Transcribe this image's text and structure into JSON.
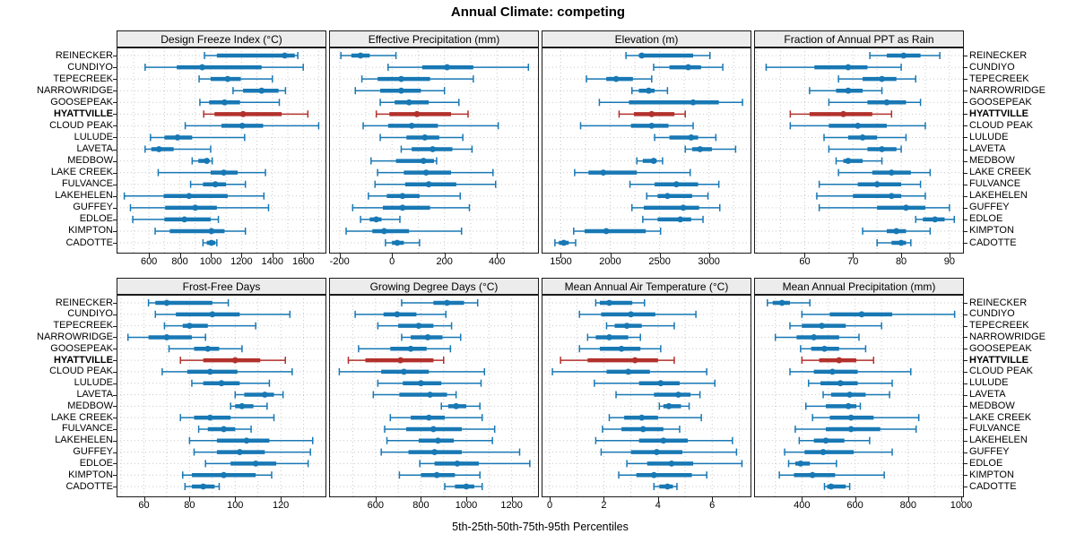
{
  "title": "Annual Climate: competing",
  "xlabel": "5th-25th-50th-75th-95th Percentiles",
  "percentile_labels": [
    "5th",
    "25th",
    "50th",
    "75th",
    "95th"
  ],
  "highlight_station": "HYATTVILLE",
  "colors": {
    "series_blue": "#1878b4",
    "highlight_red": "#b2312c",
    "gridline": "#c9c9c9",
    "strip_bg": "#ececec",
    "border": "#1a1a1a"
  },
  "stations": [
    "REINECKER",
    "CUNDIYO",
    "TEPECREEK",
    "NARROWRIDGE",
    "GOOSEPEAK",
    "HYATTVILLE",
    "CLOUD PEAK",
    "LULUDE",
    "LAVETA",
    "MEDBOW",
    "LAKE CREEK",
    "FULVANCE",
    "LAKEHELEN",
    "GUFFEY",
    "EDLOE",
    "KIMPTON",
    "CADOTTE"
  ],
  "chart_data": [
    {
      "type": "dotplot of 5-25-50-75-95 percentile intervals",
      "title": "Design Freeze Index (°C)",
      "xlim": [
        390,
        1750
      ],
      "ticks": [
        600,
        800,
        1000,
        1200,
        1400,
        1600
      ],
      "grid_step": 100,
      "values": [
        [
          960,
          1040,
          1480,
          1545,
          1565
        ],
        [
          575,
          780,
          945,
          1330,
          1600
        ],
        [
          925,
          1000,
          1110,
          1195,
          1400
        ],
        [
          1145,
          1210,
          1330,
          1440,
          1485
        ],
        [
          930,
          990,
          1090,
          1190,
          1445
        ],
        [
          955,
          1025,
          1210,
          1460,
          1630
        ],
        [
          835,
          1070,
          1205,
          1340,
          1700
        ],
        [
          610,
          700,
          785,
          880,
          1220
        ],
        [
          575,
          615,
          665,
          760,
          1000
        ],
        [
          880,
          920,
          975,
          990,
          1010
        ],
        [
          660,
          1000,
          1085,
          1175,
          1355
        ],
        [
          870,
          950,
          1030,
          1100,
          1225
        ],
        [
          440,
          695,
          860,
          1110,
          1345
        ],
        [
          480,
          705,
          900,
          1040,
          1375
        ],
        [
          495,
          700,
          830,
          1000,
          1050
        ],
        [
          640,
          735,
          1005,
          1090,
          1225
        ],
        [
          950,
          975,
          1005,
          1030,
          1040
        ]
      ]
    },
    {
      "type": "dotplot of 5-25-50-75-95 percentile intervals",
      "title": "Effective Precipitation (mm)",
      "xlim": [
        -240,
        560
      ],
      "ticks": [
        -200,
        0,
        200,
        400
      ],
      "grid_step": 100,
      "values": [
        [
          -195,
          -155,
          -120,
          -85,
          15
        ],
        [
          -15,
          115,
          210,
          310,
          520
        ],
        [
          -115,
          -55,
          35,
          145,
          310
        ],
        [
          -140,
          -45,
          35,
          110,
          200
        ],
        [
          -45,
          10,
          65,
          140,
          255
        ],
        [
          -60,
          -10,
          95,
          225,
          290
        ],
        [
          -110,
          -15,
          75,
          175,
          405
        ],
        [
          -45,
          55,
          125,
          180,
          270
        ],
        [
          35,
          75,
          155,
          230,
          305
        ],
        [
          -80,
          15,
          120,
          160,
          170
        ],
        [
          -55,
          45,
          130,
          225,
          385
        ],
        [
          -65,
          50,
          140,
          245,
          395
        ],
        [
          -90,
          -20,
          40,
          105,
          260
        ],
        [
          -150,
          -35,
          40,
          145,
          295
        ],
        [
          -120,
          -85,
          -60,
          -40,
          30
        ],
        [
          -175,
          -75,
          -30,
          65,
          265
        ],
        [
          -25,
          0,
          20,
          45,
          105
        ]
      ]
    },
    {
      "type": "dotplot of 5-25-50-75-95 percentile intervals",
      "title": "Elevation (m)",
      "xlim": [
        1305,
        3430
      ],
      "ticks": [
        1500,
        2000,
        2500,
        3000
      ],
      "grid_step": 250,
      "values": [
        [
          2160,
          2290,
          2320,
          2840,
          3010
        ],
        [
          2440,
          2600,
          2790,
          2920,
          3140
        ],
        [
          1760,
          1960,
          2060,
          2230,
          2420
        ],
        [
          2220,
          2290,
          2390,
          2450,
          2580
        ],
        [
          1890,
          2190,
          2840,
          3100,
          3340
        ],
        [
          2090,
          2240,
          2420,
          2650,
          2760
        ],
        [
          1700,
          2210,
          2420,
          2590,
          2840
        ],
        [
          2450,
          2600,
          2820,
          2890,
          3070
        ],
        [
          2760,
          2830,
          2910,
          3030,
          3270
        ],
        [
          2270,
          2330,
          2440,
          2470,
          2530
        ],
        [
          1640,
          1780,
          1930,
          2270,
          2810
        ],
        [
          2200,
          2450,
          2670,
          2890,
          3100
        ],
        [
          2370,
          2480,
          2580,
          2830,
          2990
        ],
        [
          2220,
          2340,
          2740,
          2900,
          3110
        ],
        [
          2330,
          2480,
          2710,
          2820,
          2940
        ],
        [
          1630,
          1740,
          1960,
          2360,
          2510
        ],
        [
          1440,
          1480,
          1530,
          1580,
          1650
        ]
      ]
    },
    {
      "type": "dotplot of 5-25-50-75-95 percentile intervals",
      "title": "Fraction of Annual PPT as Rain",
      "xlim": [
        49.5,
        93
      ],
      "ticks": [
        60,
        70,
        80,
        90
      ],
      "grid_step": 5,
      "values": [
        [
          73.5,
          77,
          80.5,
          84,
          88
        ],
        [
          52,
          62,
          69,
          73,
          80
        ],
        [
          67,
          72,
          76,
          79,
          83
        ],
        [
          61,
          66.5,
          69,
          72,
          76
        ],
        [
          65,
          73,
          77,
          81,
          84
        ],
        [
          57,
          61,
          68,
          74,
          78
        ],
        [
          57,
          65,
          71,
          77,
          85
        ],
        [
          64,
          69,
          72,
          75,
          81
        ],
        [
          65,
          73,
          76,
          79,
          80
        ],
        [
          66.5,
          68,
          69,
          72,
          76
        ],
        [
          67,
          74,
          78,
          82,
          86
        ],
        [
          63,
          71,
          75,
          80,
          84
        ],
        [
          62.5,
          70,
          78,
          80,
          85
        ],
        [
          63,
          75,
          81,
          85,
          90
        ],
        [
          83,
          84.5,
          87,
          89,
          91
        ],
        [
          72,
          77,
          79,
          81,
          86
        ],
        [
          75,
          78,
          80,
          81,
          82
        ]
      ]
    },
    {
      "type": "dotplot of 5-25-50-75-95 percentile intervals",
      "title": "Frost-Free Days",
      "xlim": [
        48,
        140
      ],
      "ticks": [
        60,
        80,
        100,
        120
      ],
      "grid_step": 10,
      "values": [
        [
          62,
          65,
          70,
          90,
          97
        ],
        [
          65,
          74,
          90,
          102,
          124
        ],
        [
          69,
          77,
          80,
          88,
          109
        ],
        [
          53,
          62,
          70,
          81,
          87
        ],
        [
          71,
          82,
          88,
          93,
          103
        ],
        [
          76,
          86,
          100,
          111,
          122
        ],
        [
          68,
          79,
          89,
          101,
          125
        ],
        [
          81,
          86,
          94,
          102,
          115
        ],
        [
          100,
          104,
          113,
          117,
          121
        ],
        [
          98,
          100,
          103,
          108,
          114
        ],
        [
          76,
          82,
          89,
          98,
          117
        ],
        [
          84,
          88,
          95,
          100,
          107
        ],
        [
          80,
          92,
          105,
          115,
          134
        ],
        [
          82,
          92,
          102,
          113,
          133
        ],
        [
          87,
          98,
          109,
          118,
          132
        ],
        [
          77,
          81,
          95,
          109,
          116
        ],
        [
          78,
          81,
          86,
          91,
          93
        ]
      ]
    },
    {
      "type": "dotplot of 5-25-50-75-95 percentile intervals",
      "title": "Growing Degree Days (°C)",
      "xlim": [
        395,
        1320
      ],
      "ticks": [
        600,
        800,
        1000,
        1200
      ],
      "grid_step": 100,
      "values": [
        [
          715,
          855,
          915,
          990,
          1050
        ],
        [
          510,
          635,
          695,
          780,
          910
        ],
        [
          610,
          700,
          790,
          855,
          935
        ],
        [
          715,
          755,
          830,
          895,
          975
        ],
        [
          525,
          665,
          755,
          825,
          930
        ],
        [
          480,
          555,
          710,
          855,
          900
        ],
        [
          440,
          625,
          725,
          835,
          1080
        ],
        [
          610,
          720,
          800,
          890,
          1065
        ],
        [
          590,
          705,
          840,
          915,
          955
        ],
        [
          890,
          920,
          955,
          1000,
          1060
        ],
        [
          665,
          755,
          835,
          905,
          1070
        ],
        [
          640,
          735,
          855,
          980,
          1125
        ],
        [
          650,
          790,
          875,
          945,
          1115
        ],
        [
          625,
          745,
          860,
          980,
          1235
        ],
        [
          795,
          860,
          960,
          1055,
          1280
        ],
        [
          705,
          800,
          870,
          950,
          1060
        ],
        [
          905,
          950,
          1000,
          1035,
          1070
        ]
      ]
    },
    {
      "type": "dotplot of 5-25-50-75-95 percentile intervals",
      "title": "Mean Annual Air Temperature (°C)",
      "xlim": [
        -0.3,
        7.45
      ],
      "ticks": [
        0,
        2,
        4,
        6
      ],
      "grid_step": 1,
      "values": [
        [
          1.7,
          1.85,
          2.2,
          3.05,
          3.5
        ],
        [
          1.1,
          1.9,
          3.0,
          3.9,
          5.4
        ],
        [
          2.1,
          2.4,
          2.85,
          3.4,
          4.6
        ],
        [
          1.4,
          1.7,
          2.2,
          2.9,
          3.35
        ],
        [
          1.1,
          1.85,
          2.65,
          3.35,
          4.1
        ],
        [
          0.4,
          1.4,
          3.15,
          4.0,
          4.6
        ],
        [
          0.1,
          2.1,
          2.9,
          3.7,
          5.8
        ],
        [
          1.65,
          3.3,
          4.1,
          4.8,
          6.1
        ],
        [
          2.45,
          3.85,
          4.75,
          5.2,
          5.55
        ],
        [
          4.05,
          4.2,
          4.4,
          4.85,
          5.15
        ],
        [
          2.2,
          2.75,
          3.4,
          4.0,
          5.6
        ],
        [
          1.95,
          2.65,
          3.45,
          4.2,
          4.8
        ],
        [
          1.7,
          3.3,
          4.2,
          5.1,
          6.75
        ],
        [
          1.9,
          3.0,
          3.95,
          4.9,
          6.9
        ],
        [
          2.85,
          3.6,
          4.5,
          5.3,
          7.1
        ],
        [
          2.55,
          3.2,
          3.85,
          5.25,
          5.8
        ],
        [
          3.85,
          4.05,
          4.35,
          4.55,
          4.7
        ]
      ]
    },
    {
      "type": "dotplot of 5-25-50-75-95 percentile intervals",
      "title": "Mean Annual Precipitation (mm)",
      "xlim": [
        220,
        1010
      ],
      "ticks": [
        400,
        600,
        800,
        1000
      ],
      "grid_step": 100,
      "values": [
        [
          270,
          290,
          325,
          355,
          430
        ],
        [
          400,
          505,
          625,
          740,
          975
        ],
        [
          355,
          400,
          475,
          565,
          700
        ],
        [
          300,
          380,
          445,
          540,
          615
        ],
        [
          395,
          435,
          485,
          540,
          640
        ],
        [
          400,
          465,
          540,
          605,
          670
        ],
        [
          355,
          445,
          515,
          610,
          810
        ],
        [
          425,
          470,
          545,
          610,
          740
        ],
        [
          480,
          510,
          580,
          640,
          730
        ],
        [
          415,
          490,
          575,
          605,
          620
        ],
        [
          440,
          505,
          585,
          670,
          840
        ],
        [
          375,
          490,
          585,
          695,
          830
        ],
        [
          390,
          445,
          490,
          560,
          655
        ],
        [
          335,
          410,
          480,
          595,
          740
        ],
        [
          350,
          375,
          395,
          430,
          530
        ],
        [
          315,
          370,
          440,
          525,
          710
        ],
        [
          485,
          495,
          510,
          565,
          580
        ]
      ]
    }
  ]
}
